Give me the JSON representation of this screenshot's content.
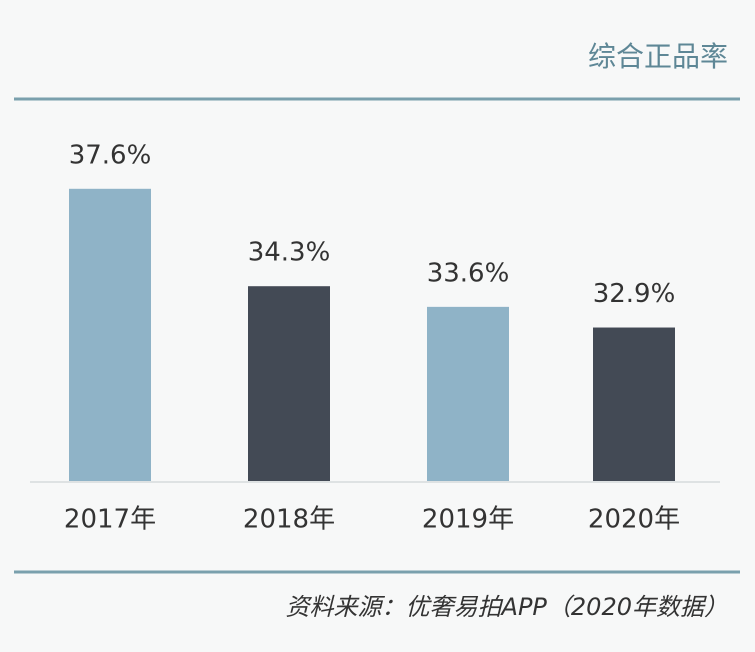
{
  "chart_data": {
    "type": "bar",
    "title": "综合正品率",
    "categories": [
      "2017年",
      "2018年",
      "2019年",
      "2020年"
    ],
    "values": [
      37.6,
      34.3,
      33.6,
      32.9
    ],
    "value_labels": [
      "37.6%",
      "34.3%",
      "33.6%",
      "32.9%"
    ],
    "colors": [
      "#8fb3c7",
      "#434a55",
      "#8fb3c7",
      "#434a55"
    ],
    "ylim": [
      27.7,
      38
    ],
    "source": "资料来源：优奢易拍APP（2020年数据）"
  }
}
